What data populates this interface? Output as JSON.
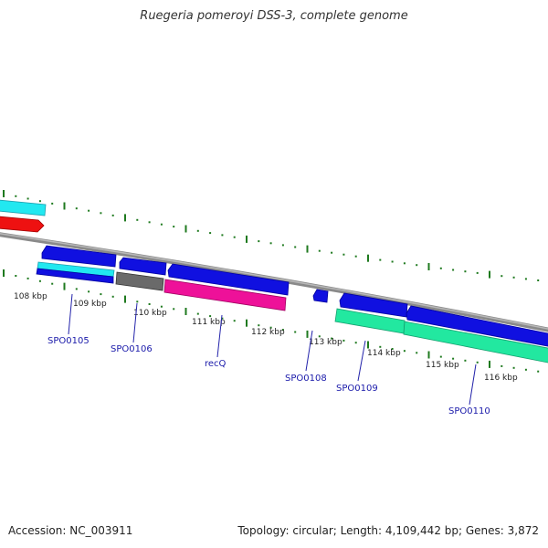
{
  "title": "Ruegeria pomeroyi DSS-3, complete genome",
  "footer": {
    "accession": "Accession: NC_003911",
    "summary": "Topology: circular; Length: 4,109,442 bp; Genes: 3,872"
  },
  "colors": {
    "backbone": "#8a8a8a",
    "ticks": "#1f7a1f",
    "gene_blue": "#1010e0",
    "gene_cyan": "#22e8f0",
    "gene_red": "#ee1111",
    "gene_gray": "#6a6a6a",
    "gene_magenta": "#ee1199",
    "gene_green": "#22e8a0",
    "label_blue": "#1a1aaa"
  },
  "scale_labels": [
    "108 kbp",
    "109 kbp",
    "110 kbp",
    "111 kbp",
    "112 kbp",
    "113 kbp",
    "114 kbp",
    "115 kbp",
    "116 kbp"
  ],
  "gene_labels": [
    "SPO0105",
    "SPO0106",
    "recQ",
    "SPO0108",
    "SPO0109",
    "SPO0110"
  ]
}
